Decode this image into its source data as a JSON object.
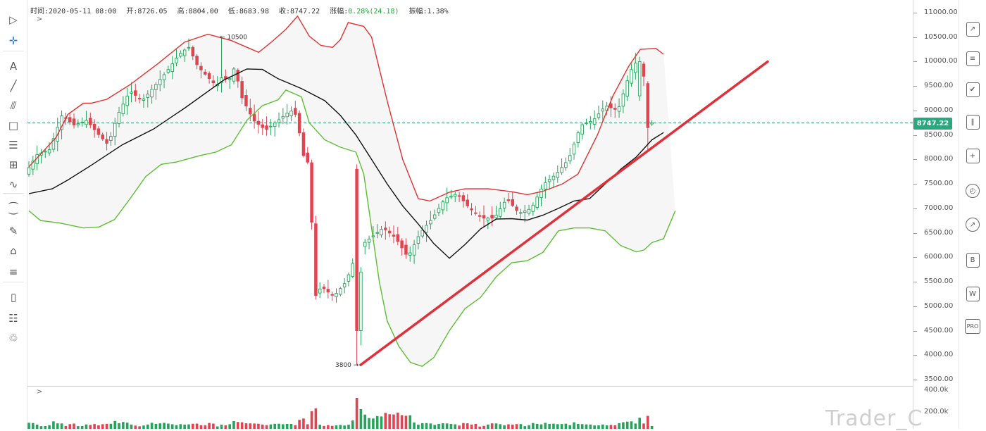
{
  "info_bar": {
    "time": "时间:2020-05-11 08:00",
    "open": "开:8726.05",
    "high": "高:8804.00",
    "low": "低:8683.98",
    "close": "收:8747.22",
    "change_label": "涨幅:",
    "change_value": "0.28%(24.18)",
    "amplitude": "振幅:1.38%"
  },
  "price_axis": {
    "labels": [
      "11000.00",
      "10500.00",
      "10000.00",
      "9500.00",
      "9000.00",
      "8500.00",
      "8000.00",
      "7500.00",
      "7000.00",
      "6500.00",
      "6000.00",
      "5500.00",
      "5000.00",
      "4500.00",
      "4000.00",
      "3500.00"
    ],
    "current_price": "8747.22"
  },
  "volume_axis": {
    "labels": [
      "400.0k",
      "200.0k"
    ]
  },
  "annotations": {
    "high_marker": "← 10500",
    "low_marker": "3800 →"
  },
  "watermark": "Trader_C",
  "collapse_glyph": ">",
  "left_tools": [
    {
      "name": "cursor-arrow-icon",
      "glyph": "▷"
    },
    {
      "name": "crosshair-icon",
      "glyph": "✛"
    },
    {
      "name": "text-tool-icon",
      "glyph": "A"
    },
    {
      "name": "trend-line-icon",
      "glyph": "╱"
    },
    {
      "name": "fork-lines-icon",
      "glyph": "⫻"
    },
    {
      "name": "rectangle-icon",
      "glyph": "□"
    },
    {
      "name": "fib-levels-icon",
      "glyph": "☰"
    },
    {
      "name": "grid-tool-icon",
      "glyph": "⊞"
    },
    {
      "name": "wave-pattern-icon",
      "glyph": "∿"
    },
    {
      "name": "ruler-icon",
      "glyph": "⁐"
    },
    {
      "name": "brush-icon",
      "glyph": "✎"
    },
    {
      "name": "lock-icon",
      "glyph": "⌂"
    },
    {
      "name": "magnet-icon",
      "glyph": "≡"
    },
    {
      "name": "bookmark-icon",
      "glyph": "▯"
    },
    {
      "name": "template-edit-icon",
      "glyph": "☷"
    },
    {
      "name": "trash-icon",
      "glyph": "♲"
    }
  ],
  "right_tools": [
    {
      "name": "chart-line-icon",
      "label": "↗"
    },
    {
      "name": "list-icon",
      "label": "≡"
    },
    {
      "name": "checklist-icon",
      "label": "✔"
    },
    {
      "name": "bar-stats-icon",
      "label": "‖"
    },
    {
      "name": "add-window-icon",
      "label": "+"
    },
    {
      "name": "alarm-clock-icon",
      "label": "◴"
    },
    {
      "name": "compass-icon",
      "label": "↗"
    },
    {
      "name": "text-b-icon",
      "label": "B"
    },
    {
      "name": "w-icon",
      "label": "W"
    },
    {
      "name": "pro-icon",
      "label": "PRO"
    }
  ],
  "chart_data": {
    "type": "candlestick",
    "title": "",
    "ylim": [
      3500,
      11000
    ],
    "reference_line_price": 8747.22,
    "high_marker_price": 10500,
    "low_marker_price": 3800,
    "upward_trendline": {
      "from_price": 3800,
      "to_price_above": 10000
    },
    "indicators": [
      "bollinger_upper",
      "bollinger_mid",
      "bollinger_lower"
    ],
    "colors": {
      "up": "#23a65a",
      "down": "#e0454f",
      "bollinger_upper": "#e03232",
      "bollinger_mid": "#111111",
      "bollinger_lower": "#5cbf32",
      "trendline": "#e0303a",
      "reference_line": "#2aa77d"
    }
  }
}
